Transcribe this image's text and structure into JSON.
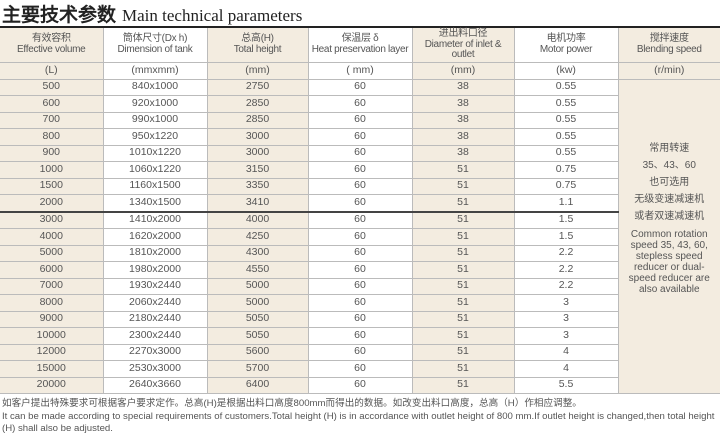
{
  "title": {
    "zh": "主要技术参数",
    "en": "Main technical parameters"
  },
  "columns": [
    {
      "zh": "有效容积",
      "en": "Effective volume",
      "unit": "(L)"
    },
    {
      "zh": "筒体尺寸(Dx h)",
      "en": "Dimension of tank",
      "unit": "(mmxmm)"
    },
    {
      "zh": "总高(H)",
      "en": "Total height",
      "unit": "(mm)"
    },
    {
      "zh": "保温层 δ",
      "en": "Heat preservation layer",
      "unit": "( mm)"
    },
    {
      "zh": "进出料口径",
      "en": "Diameter of inlet & outlet",
      "unit": "(mm)"
    },
    {
      "zh": "电机功率",
      "en": "Motor power",
      "unit": "(kw)"
    },
    {
      "zh": "搅拌速度",
      "en": "Blending speed",
      "unit": "(r/min)"
    }
  ],
  "rows": [
    [
      "500",
      "840x1000",
      "2750",
      "60",
      "38",
      "0.55"
    ],
    [
      "600",
      "920x1000",
      "2850",
      "60",
      "38",
      "0.55"
    ],
    [
      "700",
      "990x1000",
      "2850",
      "60",
      "38",
      "0.55"
    ],
    [
      "800",
      "950x1220",
      "3000",
      "60",
      "38",
      "0.55"
    ],
    [
      "900",
      "1010x1220",
      "3000",
      "60",
      "38",
      "0.55"
    ],
    [
      "1000",
      "1060x1220",
      "3150",
      "60",
      "51",
      "0.75"
    ],
    [
      "1500",
      "1160x1500",
      "3350",
      "60",
      "51",
      "0.75"
    ],
    [
      "2000",
      "1340x1500",
      "3410",
      "60",
      "51",
      "1.1"
    ],
    [
      "3000",
      "1410x2000",
      "4000",
      "60",
      "51",
      "1.5"
    ],
    [
      "4000",
      "1620x2000",
      "4250",
      "60",
      "51",
      "1.5"
    ],
    [
      "5000",
      "1810x2000",
      "4300",
      "60",
      "51",
      "2.2"
    ],
    [
      "6000",
      "1980x2000",
      "4550",
      "60",
      "51",
      "2.2"
    ],
    [
      "7000",
      "1930x2440",
      "5000",
      "60",
      "51",
      "2.2"
    ],
    [
      "8000",
      "2060x2440",
      "5000",
      "60",
      "51",
      "3"
    ],
    [
      "9000",
      "2180x2440",
      "5050",
      "60",
      "51",
      "3"
    ],
    [
      "10000",
      "2300x2440",
      "5050",
      "60",
      "51",
      "3"
    ],
    [
      "12000",
      "2270x3000",
      "5600",
      "60",
      "51",
      "4"
    ],
    [
      "15000",
      "2530x3000",
      "5700",
      "60",
      "51",
      "4"
    ],
    [
      "20000",
      "2640x3660",
      "6400",
      "60",
      "51",
      "5.5"
    ]
  ],
  "speed_note": {
    "zh": [
      "常用转速",
      "35、43、60",
      "也可选用",
      "无级变速减速机",
      "或者双速减速机"
    ],
    "en": "Common rotation speed 35, 43, 60, stepless speed reducer or dual-speed reducer are also available"
  },
  "footer": {
    "zh": "如客户提出特殊要求可根据客户要求定作。总高(H)是根据出料口高度800mm而得出的数据。如改变出料口高度，总高（H）作相应调整。",
    "en": "It can be made according to special requirements of customers.Total height (H) is in accordance with outlet height of 800 mm.If outlet height is changed,then total height (H) shall also be adjusted."
  }
}
